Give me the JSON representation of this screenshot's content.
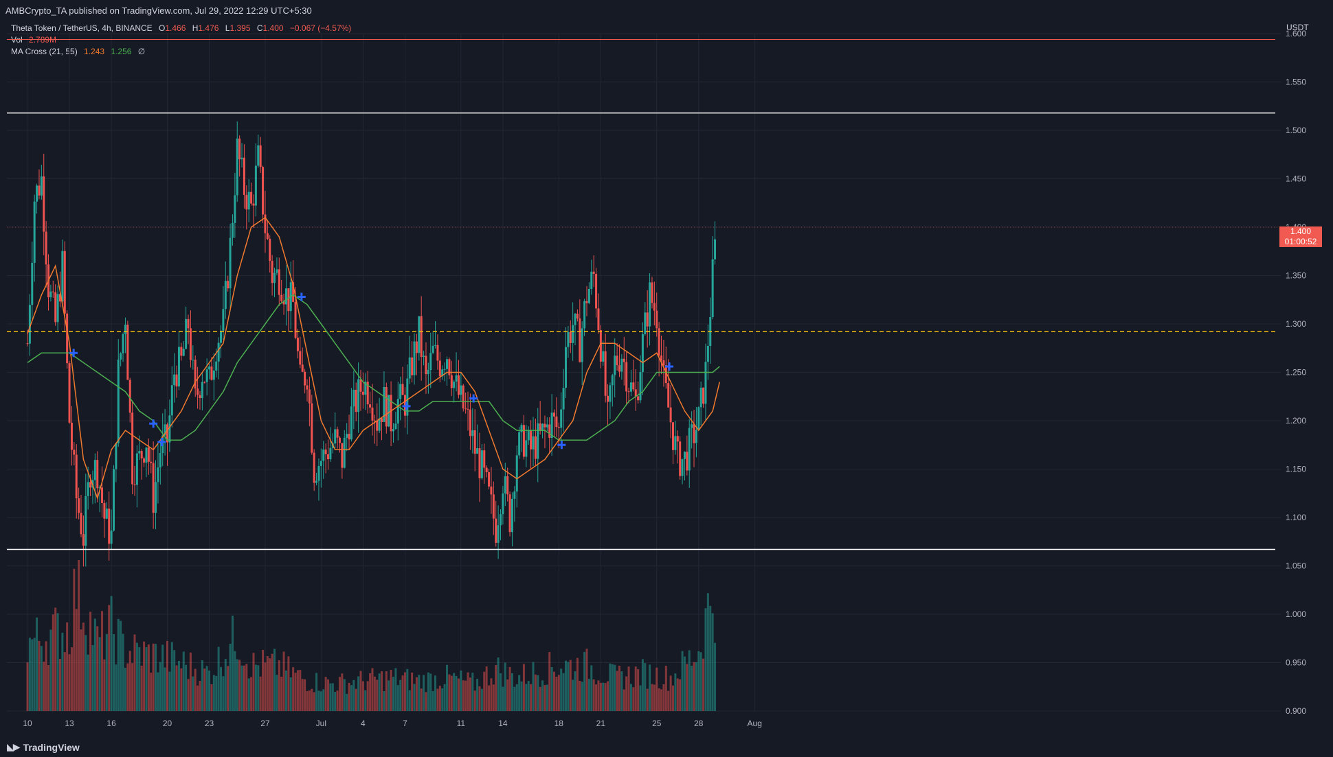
{
  "header": {
    "publisher": "AMBCrypto_TA published on TradingView.com, Jul 29, 2022 12:29 UTC+5:30"
  },
  "legend": {
    "symbol": "Theta Token / TetherUS, 4h, BINANCE",
    "o_label": "O",
    "o": "1.466",
    "h_label": "H",
    "h": "1.476",
    "l_label": "L",
    "l": "1.395",
    "c_label": "C",
    "c": "1.400",
    "change": "−0.067 (−4.57%)",
    "vol_label": "Vol",
    "vol": "2.789M",
    "ma_label": "MA Cross (21, 55)",
    "ma_fast": "1.243",
    "ma_slow": "1.256",
    "ma_symbol": "∅"
  },
  "price_tag": {
    "price": "1.400",
    "countdown": "01:00:52"
  },
  "watermark": "TradingView",
  "colors": {
    "background": "#161a25",
    "up": "#26a69a",
    "down": "#ef5350",
    "ma_fast": "#f27a2e",
    "ma_slow": "#4caf50",
    "cross": "#2962ff",
    "support_resistance": "#ffffff",
    "mid_level": "#f0b90b"
  },
  "chart_data": {
    "type": "candlestick",
    "title": "Theta Token / TetherUS, 4h, BINANCE",
    "y_axis_title": "USDT",
    "y_range": [
      0.9,
      1.6
    ],
    "y_ticks": [
      "1.600",
      "1.550",
      "1.500",
      "1.450",
      "1.400",
      "1.350",
      "1.300",
      "1.250",
      "1.200",
      "1.150",
      "1.100",
      "1.050",
      "1.000",
      "0.950",
      "0.900"
    ],
    "x_ticks": [
      {
        "label": "10",
        "day": 0
      },
      {
        "label": "13",
        "day": 3
      },
      {
        "label": "16",
        "day": 6
      },
      {
        "label": "20",
        "day": 10
      },
      {
        "label": "23",
        "day": 13
      },
      {
        "label": "27",
        "day": 17
      },
      {
        "label": "Jul",
        "day": 21
      },
      {
        "label": "4",
        "day": 24
      },
      {
        "label": "7",
        "day": 27
      },
      {
        "label": "11",
        "day": 31
      },
      {
        "label": "14",
        "day": 34
      },
      {
        "label": "18",
        "day": 38
      },
      {
        "label": "21",
        "day": 41
      },
      {
        "label": "25",
        "day": 45
      },
      {
        "label": "28",
        "day": 48
      },
      {
        "label": "Aug",
        "day": 52
      }
    ],
    "x_unit": "days since Jun 10 2022",
    "horizontal_levels": [
      {
        "name": "resistance",
        "price": 1.518,
        "style": "solid",
        "color": "#ffffff"
      },
      {
        "name": "support",
        "price": 1.067,
        "style": "solid",
        "color": "#ffffff"
      },
      {
        "name": "mid-range",
        "price": 1.292,
        "style": "dashed",
        "color": "#f0b90b"
      },
      {
        "name": "high",
        "price": 1.594,
        "style": "solid",
        "color": "#f05a50"
      }
    ],
    "price_path": [
      [
        0,
        1.28
      ],
      [
        0.5,
        1.43
      ],
      [
        1,
        1.45
      ],
      [
        1.5,
        1.34
      ],
      [
        2,
        1.3
      ],
      [
        2.5,
        1.36
      ],
      [
        3,
        1.2
      ],
      [
        3.5,
        1.12
      ],
      [
        4,
        1.08
      ],
      [
        4.5,
        1.15
      ],
      [
        5,
        1.15
      ],
      [
        5.5,
        1.1
      ],
      [
        6,
        1.08
      ],
      [
        6.5,
        1.25
      ],
      [
        7,
        1.31
      ],
      [
        7.5,
        1.15
      ],
      [
        8,
        1.16
      ],
      [
        8.5,
        1.18
      ],
      [
        9,
        1.12
      ],
      [
        9.5,
        1.17
      ],
      [
        10,
        1.18
      ],
      [
        10.5,
        1.25
      ],
      [
        11,
        1.26
      ],
      [
        11.5,
        1.3
      ],
      [
        12,
        1.22
      ],
      [
        12.5,
        1.25
      ],
      [
        13,
        1.24
      ],
      [
        13.5,
        1.28
      ],
      [
        14,
        1.3
      ],
      [
        14.5,
        1.38
      ],
      [
        15,
        1.48
      ],
      [
        15.5,
        1.44
      ],
      [
        16,
        1.42
      ],
      [
        16.5,
        1.47
      ],
      [
        17,
        1.4
      ],
      [
        17.5,
        1.35
      ],
      [
        18,
        1.35
      ],
      [
        18.5,
        1.33
      ],
      [
        19,
        1.32
      ],
      [
        19.5,
        1.24
      ],
      [
        20,
        1.25
      ],
      [
        20.5,
        1.15
      ],
      [
        21,
        1.16
      ],
      [
        21.5,
        1.17
      ],
      [
        22,
        1.18
      ],
      [
        22.5,
        1.16
      ],
      [
        23,
        1.2
      ],
      [
        23.5,
        1.22
      ],
      [
        24,
        1.24
      ],
      [
        24.5,
        1.23
      ],
      [
        25,
        1.2
      ],
      [
        25.5,
        1.22
      ],
      [
        26,
        1.2
      ],
      [
        26.5,
        1.22
      ],
      [
        27,
        1.22
      ],
      [
        27.5,
        1.26
      ],
      [
        28,
        1.29
      ],
      [
        28.5,
        1.24
      ],
      [
        29,
        1.27
      ],
      [
        29.5,
        1.26
      ],
      [
        30,
        1.27
      ],
      [
        30.5,
        1.24
      ],
      [
        31,
        1.22
      ],
      [
        31.5,
        1.2
      ],
      [
        32,
        1.17
      ],
      [
        32.5,
        1.15
      ],
      [
        33,
        1.12
      ],
      [
        33.5,
        1.09
      ],
      [
        34,
        1.14
      ],
      [
        34.5,
        1.1
      ],
      [
        35,
        1.17
      ],
      [
        35.5,
        1.18
      ],
      [
        36,
        1.17
      ],
      [
        36.5,
        1.18
      ],
      [
        37,
        1.19
      ],
      [
        37.5,
        1.2
      ],
      [
        38,
        1.19
      ],
      [
        38.5,
        1.28
      ],
      [
        39,
        1.3
      ],
      [
        39.5,
        1.28
      ],
      [
        40,
        1.33
      ],
      [
        40.5,
        1.35
      ],
      [
        41,
        1.28
      ],
      [
        41.5,
        1.2
      ],
      [
        42,
        1.26
      ],
      [
        42.5,
        1.27
      ],
      [
        43,
        1.24
      ],
      [
        43.5,
        1.22
      ],
      [
        44,
        1.28
      ],
      [
        44.5,
        1.33
      ],
      [
        45,
        1.31
      ],
      [
        45.5,
        1.24
      ],
      [
        46,
        1.2
      ],
      [
        46.5,
        1.16
      ],
      [
        47,
        1.16
      ],
      [
        47.5,
        1.18
      ],
      [
        48,
        1.2
      ],
      [
        48.5,
        1.25
      ],
      [
        49,
        1.35
      ],
      [
        49.3,
        1.4
      ]
    ],
    "ma_fast_path": [
      [
        0,
        1.29
      ],
      [
        1,
        1.33
      ],
      [
        2,
        1.36
      ],
      [
        3,
        1.28
      ],
      [
        4,
        1.16
      ],
      [
        5,
        1.12
      ],
      [
        6,
        1.17
      ],
      [
        7,
        1.19
      ],
      [
        8,
        1.18
      ],
      [
        9,
        1.17
      ],
      [
        10,
        1.19
      ],
      [
        11,
        1.21
      ],
      [
        12,
        1.24
      ],
      [
        13,
        1.26
      ],
      [
        14,
        1.28
      ],
      [
        15,
        1.35
      ],
      [
        16,
        1.4
      ],
      [
        17,
        1.41
      ],
      [
        18,
        1.39
      ],
      [
        19,
        1.34
      ],
      [
        20,
        1.27
      ],
      [
        21,
        1.2
      ],
      [
        22,
        1.17
      ],
      [
        23,
        1.17
      ],
      [
        24,
        1.19
      ],
      [
        25,
        1.2
      ],
      [
        26,
        1.21
      ],
      [
        27,
        1.22
      ],
      [
        28,
        1.23
      ],
      [
        29,
        1.24
      ],
      [
        30,
        1.25
      ],
      [
        31,
        1.25
      ],
      [
        32,
        1.23
      ],
      [
        33,
        1.19
      ],
      [
        34,
        1.15
      ],
      [
        35,
        1.14
      ],
      [
        36,
        1.15
      ],
      [
        37,
        1.16
      ],
      [
        38,
        1.18
      ],
      [
        39,
        1.2
      ],
      [
        40,
        1.25
      ],
      [
        41,
        1.28
      ],
      [
        42,
        1.28
      ],
      [
        43,
        1.27
      ],
      [
        44,
        1.26
      ],
      [
        45,
        1.27
      ],
      [
        46,
        1.24
      ],
      [
        47,
        1.21
      ],
      [
        48,
        1.19
      ],
      [
        49,
        1.21
      ],
      [
        49.5,
        1.24
      ]
    ],
    "ma_slow_path": [
      [
        0,
        1.26
      ],
      [
        1,
        1.27
      ],
      [
        2,
        1.27
      ],
      [
        3,
        1.27
      ],
      [
        4,
        1.26
      ],
      [
        5,
        1.25
      ],
      [
        6,
        1.24
      ],
      [
        7,
        1.23
      ],
      [
        8,
        1.21
      ],
      [
        9,
        1.2
      ],
      [
        10,
        1.18
      ],
      [
        11,
        1.18
      ],
      [
        12,
        1.19
      ],
      [
        13,
        1.21
      ],
      [
        14,
        1.23
      ],
      [
        15,
        1.26
      ],
      [
        16,
        1.28
      ],
      [
        17,
        1.3
      ],
      [
        18,
        1.32
      ],
      [
        19,
        1.33
      ],
      [
        20,
        1.32
      ],
      [
        21,
        1.3
      ],
      [
        22,
        1.28
      ],
      [
        23,
        1.26
      ],
      [
        24,
        1.24
      ],
      [
        25,
        1.23
      ],
      [
        26,
        1.22
      ],
      [
        27,
        1.21
      ],
      [
        28,
        1.21
      ],
      [
        29,
        1.22
      ],
      [
        30,
        1.22
      ],
      [
        31,
        1.22
      ],
      [
        32,
        1.22
      ],
      [
        33,
        1.22
      ],
      [
        34,
        1.2
      ],
      [
        35,
        1.19
      ],
      [
        36,
        1.19
      ],
      [
        37,
        1.19
      ],
      [
        38,
        1.18
      ],
      [
        39,
        1.18
      ],
      [
        40,
        1.18
      ],
      [
        41,
        1.19
      ],
      [
        42,
        1.2
      ],
      [
        43,
        1.22
      ],
      [
        44,
        1.23
      ],
      [
        45,
        1.25
      ],
      [
        46,
        1.25
      ],
      [
        47,
        1.25
      ],
      [
        48,
        1.25
      ],
      [
        49,
        1.25
      ],
      [
        49.5,
        1.256
      ]
    ],
    "ma_crosses": [
      {
        "day": 3.3,
        "price": 1.27
      },
      {
        "day": 9.0,
        "price": 1.197
      },
      {
        "day": 9.6,
        "price": 1.178
      },
      {
        "day": 19.6,
        "price": 1.328
      },
      {
        "day": 27.1,
        "price": 1.215
      },
      {
        "day": 31.9,
        "price": 1.223
      },
      {
        "day": 38.2,
        "price": 1.175
      },
      {
        "day": 45.9,
        "price": 1.256
      }
    ],
    "volume_profile": [
      [
        0,
        0.45
      ],
      [
        3,
        0.55
      ],
      [
        3.5,
        0.85
      ],
      [
        4,
        0.7
      ],
      [
        5,
        0.45
      ],
      [
        6,
        0.55
      ],
      [
        7,
        0.4
      ],
      [
        10,
        0.35
      ],
      [
        13,
        0.25
      ],
      [
        15,
        0.5
      ],
      [
        16,
        0.3
      ],
      [
        18,
        0.3
      ],
      [
        20,
        0.2
      ],
      [
        22,
        0.18
      ],
      [
        24,
        0.2
      ],
      [
        26,
        0.22
      ],
      [
        28,
        0.2
      ],
      [
        30,
        0.22
      ],
      [
        32,
        0.18
      ],
      [
        33.5,
        0.28
      ],
      [
        35,
        0.22
      ],
      [
        38,
        0.3
      ],
      [
        40,
        0.3
      ],
      [
        42,
        0.22
      ],
      [
        44,
        0.25
      ],
      [
        46,
        0.22
      ],
      [
        48,
        0.4
      ],
      [
        49,
        0.8
      ],
      [
        49.5,
        0.6
      ]
    ]
  }
}
